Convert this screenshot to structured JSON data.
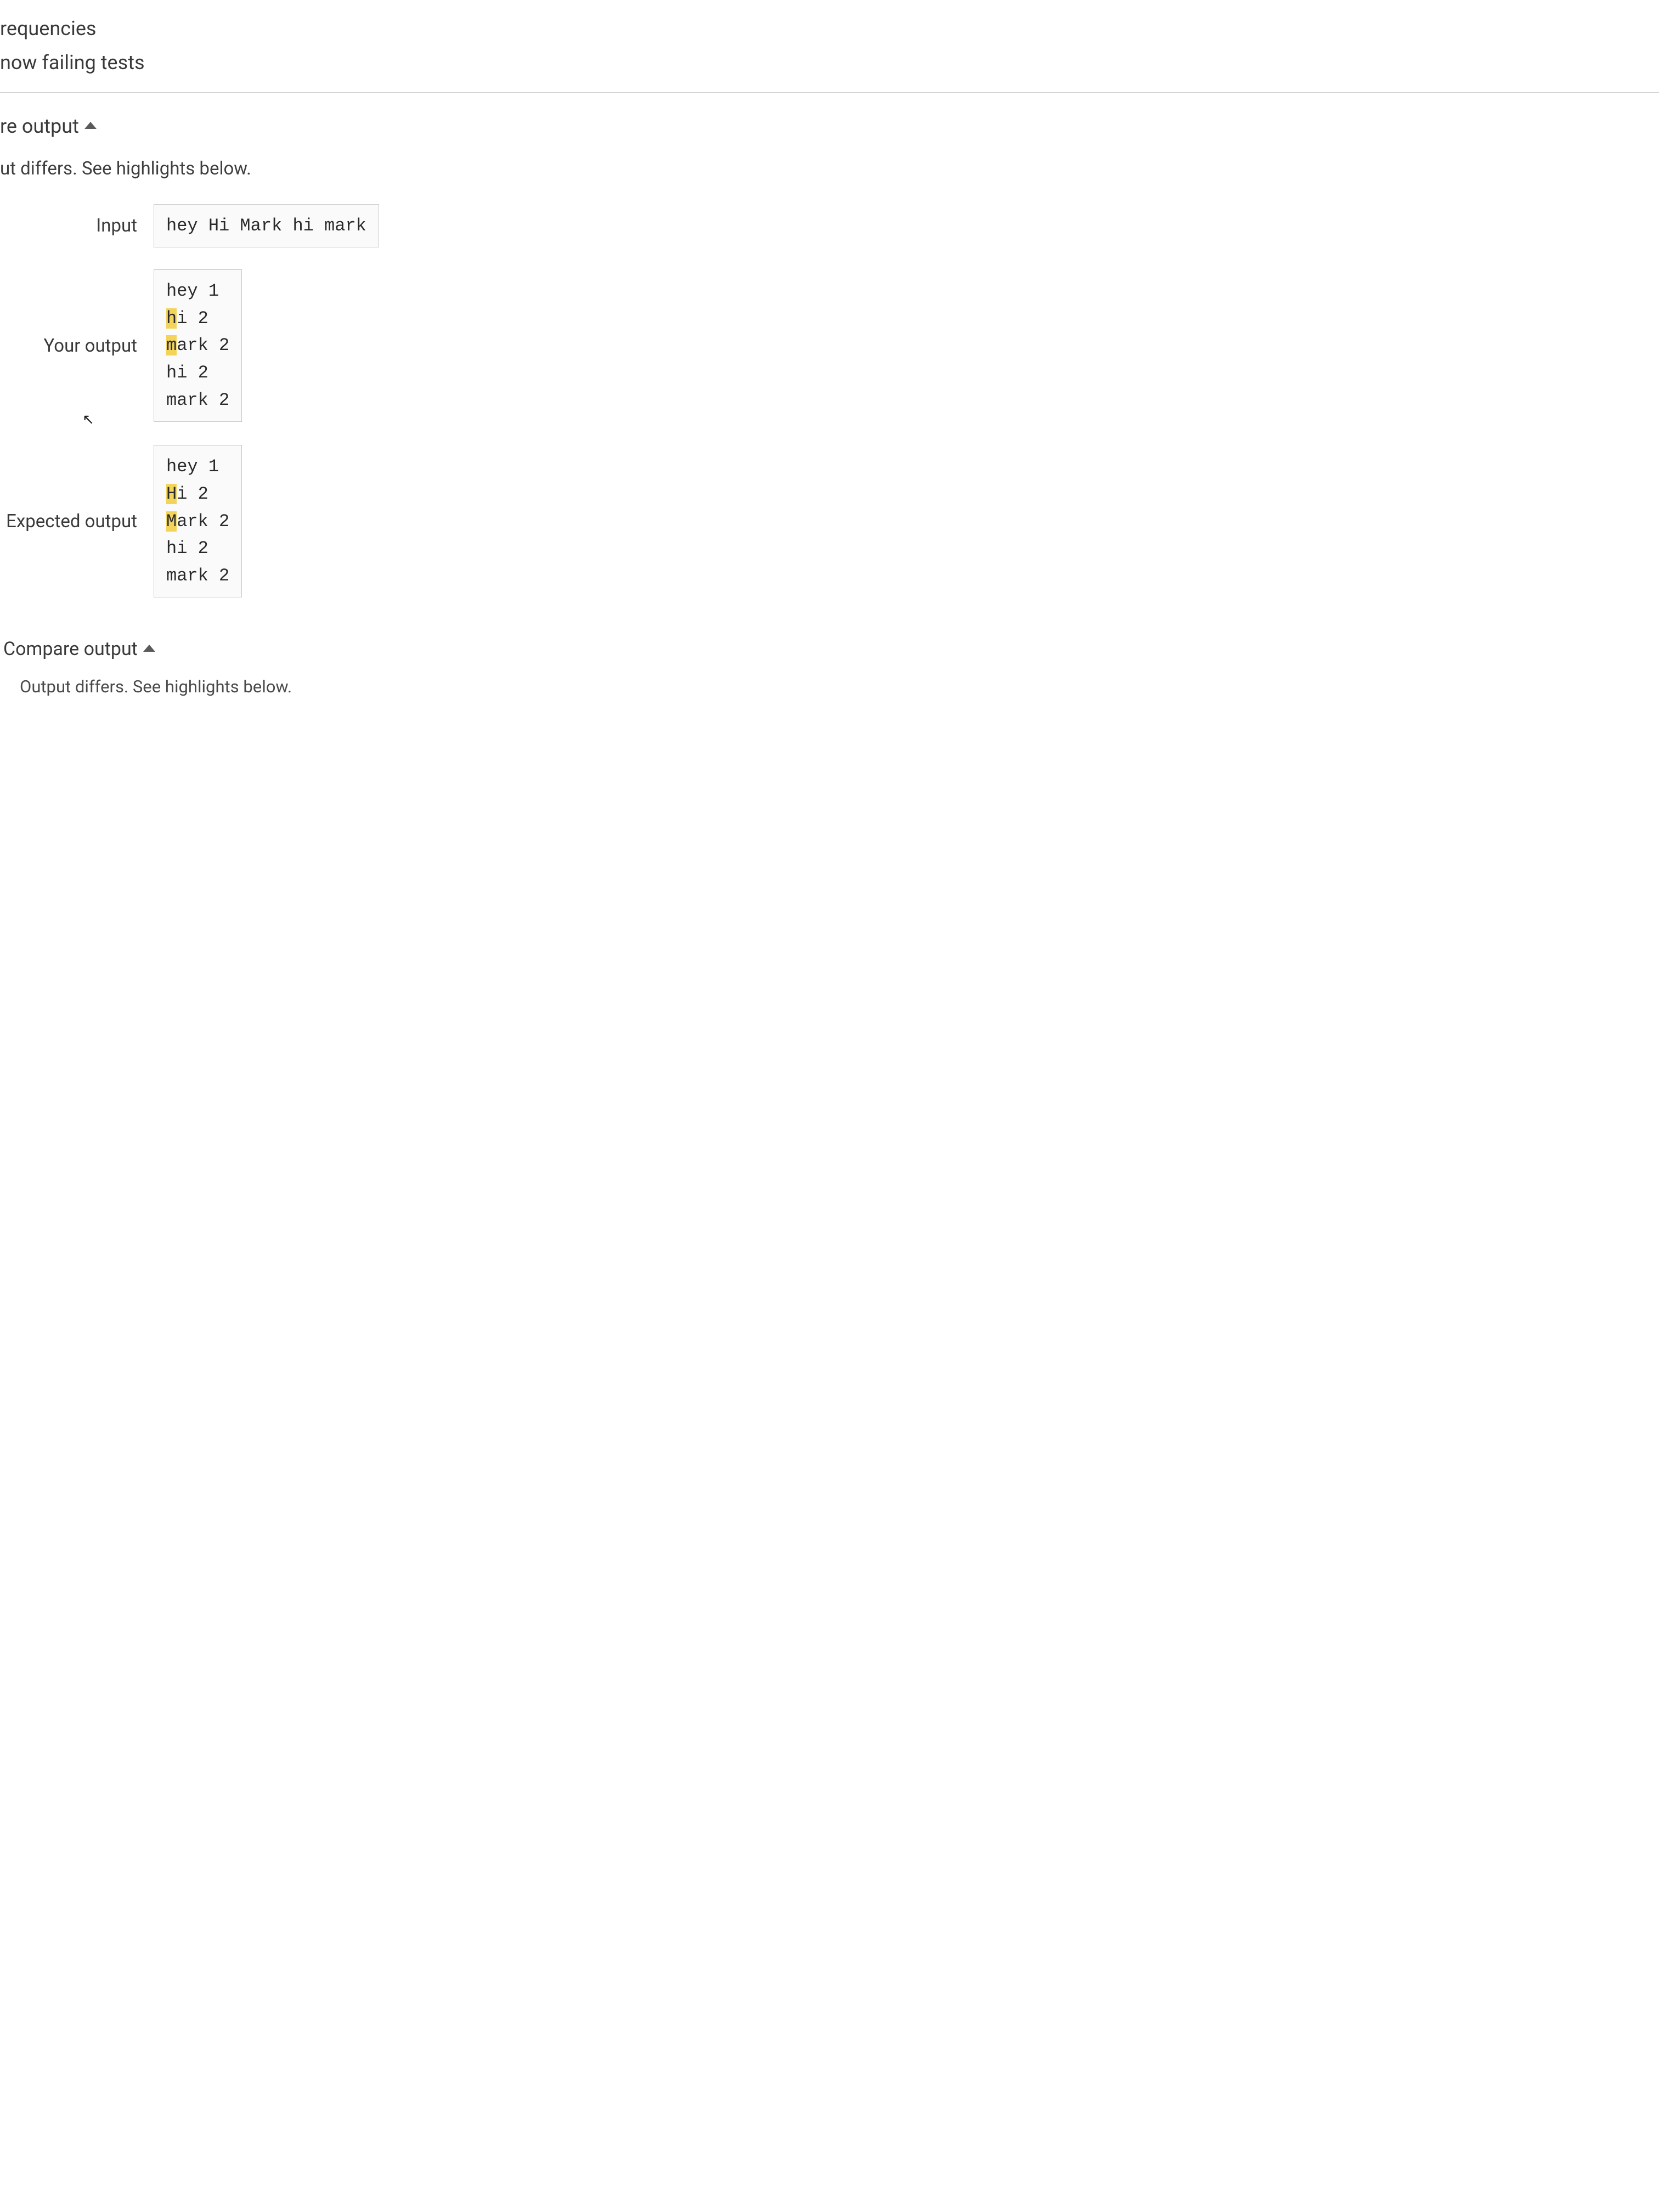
{
  "header": {
    "line1": "requencies",
    "line2": "now failing tests"
  },
  "section1": {
    "title": "re output",
    "notice": "ut differs. See highlights below.",
    "input_label": "Input",
    "input_value": "hey Hi Mark hi mark",
    "your_output_label": "Your output",
    "your_output": {
      "line1": {
        "plain": "hey 1"
      },
      "line2": {
        "hl": "h",
        "rest": "i 2"
      },
      "line3": {
        "hl": "m",
        "rest": "ark 2"
      },
      "line4": {
        "plain": "hi 2"
      },
      "line5": {
        "plain": "mark 2"
      }
    },
    "expected_label": "Expected output",
    "expected_output": {
      "line1": {
        "plain": "hey 1"
      },
      "line2": {
        "hl": "H",
        "rest": "i 2"
      },
      "line3": {
        "hl": "M",
        "rest": "ark 2"
      },
      "line4": {
        "plain": "hi 2"
      },
      "line5": {
        "plain": "mark 2"
      }
    }
  },
  "section2": {
    "title": "Compare output",
    "notice": "Output differs. See highlights below."
  },
  "style": {
    "highlight_color": "#f3d459",
    "border_color": "#c8c8c8",
    "mono_font": "Courier New"
  }
}
